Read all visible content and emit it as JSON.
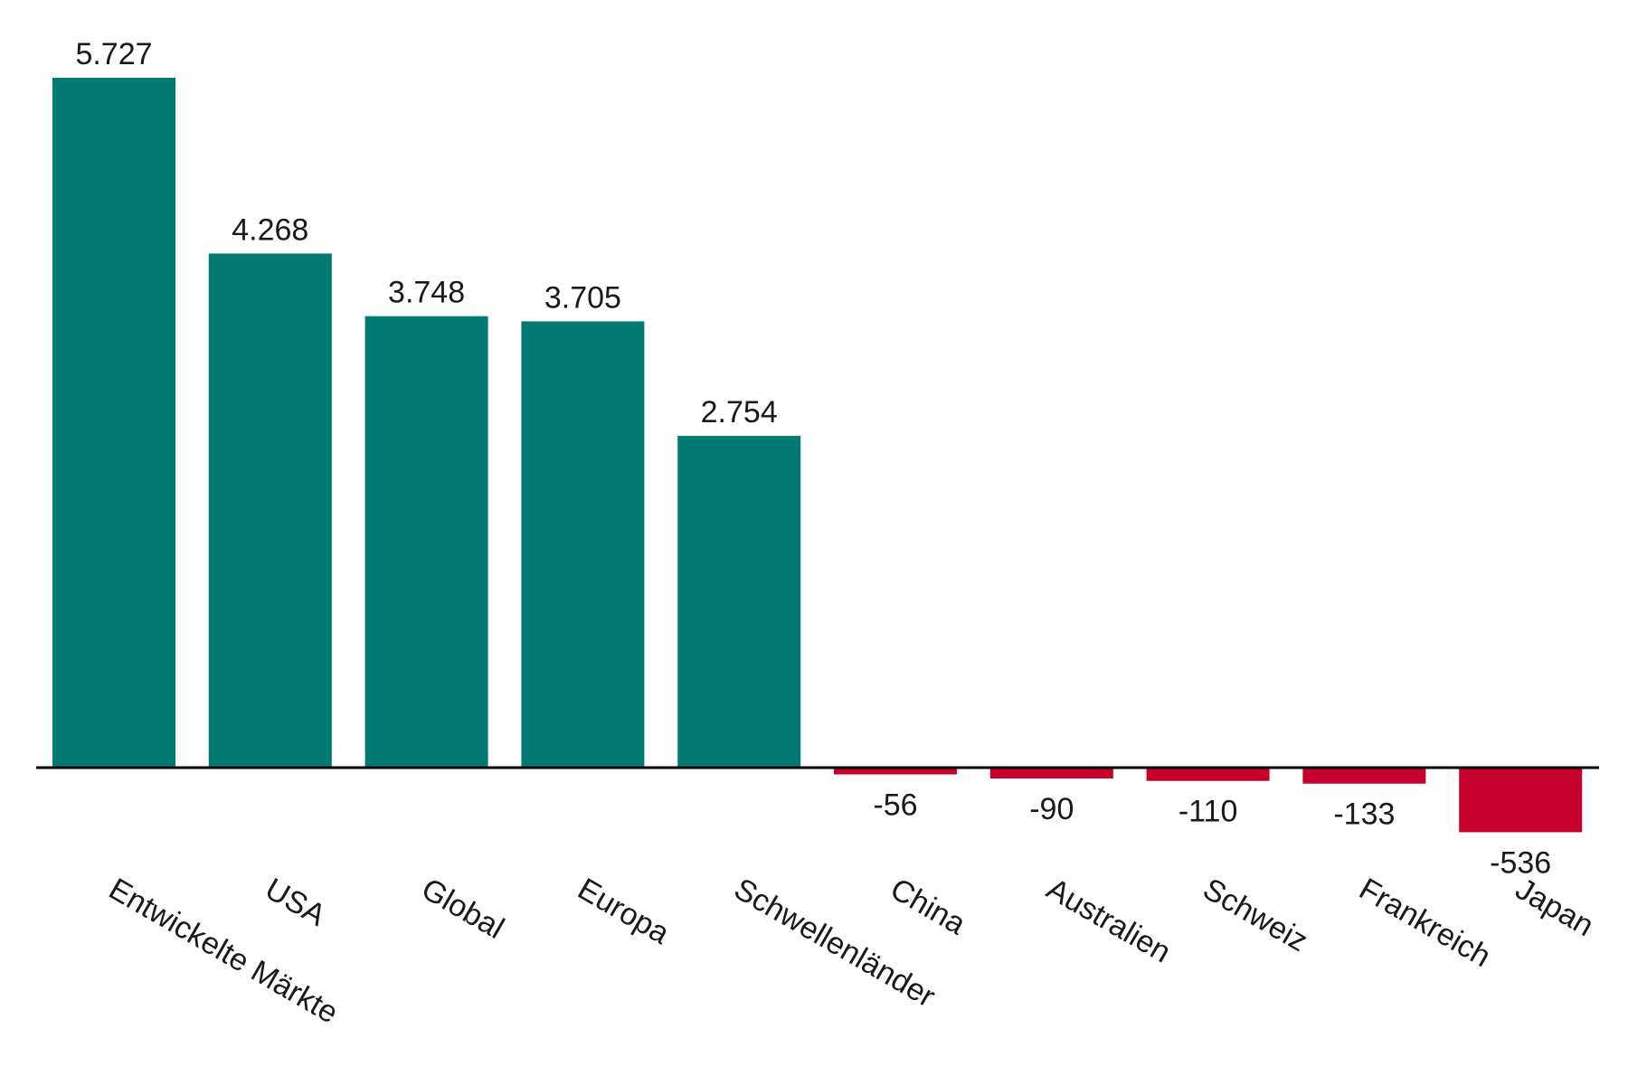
{
  "chart_data": {
    "type": "bar",
    "title": "",
    "xlabel": "",
    "ylabel": "",
    "categories": [
      "Entwickelte Märkte",
      "USA",
      "Global",
      "Europa",
      "Schwellenländer",
      "China",
      "Australien",
      "Schweiz",
      "Frankreich",
      "Japan"
    ],
    "values": [
      5727,
      4268,
      3748,
      3705,
      2754,
      -56,
      -90,
      -110,
      -133,
      -536
    ],
    "value_labels": [
      "5.727",
      "4.268",
      "3.748",
      "3.705",
      "2.754",
      "-56",
      "-90",
      "-110",
      "-133",
      "-536"
    ],
    "ylim": [
      -536,
      5727
    ],
    "grid": false,
    "legend": "none",
    "colors": {
      "positive": "#007a72",
      "negative": "#c8002c",
      "axis": "#000000",
      "text": "#1a1a1a"
    }
  }
}
